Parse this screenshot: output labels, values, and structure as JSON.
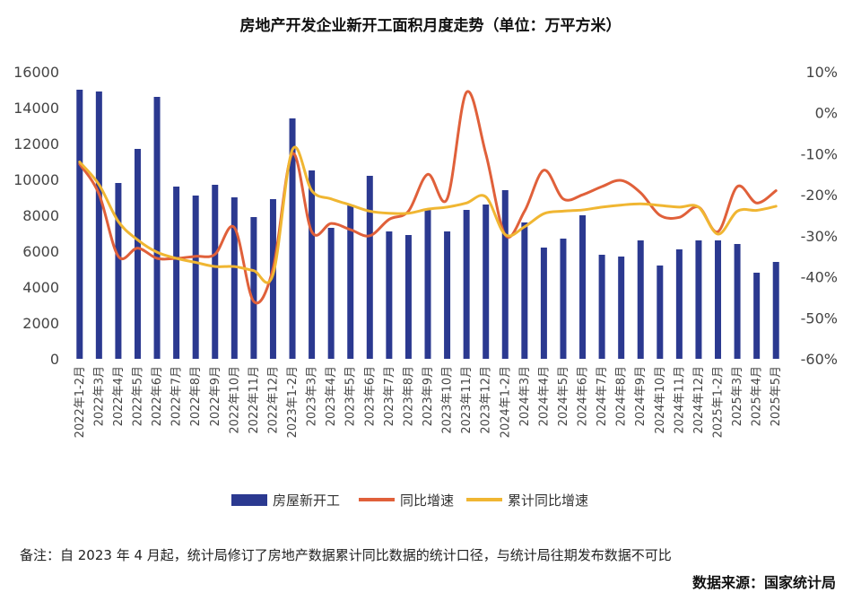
{
  "chart_data": {
    "type": "bar+line",
    "title": "房地产开发企业新开工面积月度走势（单位：万平方米）",
    "categories": [
      "2022年1-2月",
      "2022年3月",
      "2022年4月",
      "2022年5月",
      "2022年6月",
      "2022年7月",
      "2022年8月",
      "2022年9月",
      "2022年10月",
      "2022年11月",
      "2022年12月",
      "2023年1-2月",
      "2023年3月",
      "2023年4月",
      "2023年5月",
      "2023年6月",
      "2023年7月",
      "2023年8月",
      "2023年9月",
      "2023年10月",
      "2023年11月",
      "2023年12月",
      "2024年1-2月",
      "2024年3月",
      "2024年4月",
      "2024年5月",
      "2024年6月",
      "2024年7月",
      "2024年8月",
      "2024年9月",
      "2024年10月",
      "2024年11月",
      "2024年12月",
      "2025年1-2月",
      "2025年3月",
      "2025年4月",
      "2025年5月"
    ],
    "series": [
      {
        "name": "房屋新开工",
        "type": "bar",
        "axis": "left",
        "color": "#2b3990",
        "values": [
          15000,
          14900,
          9800,
          11700,
          14600,
          9600,
          9100,
          9700,
          9000,
          7900,
          8900,
          13400,
          10500,
          7300,
          8600,
          10200,
          7100,
          6900,
          8300,
          7100,
          8300,
          8600,
          9400,
          7600,
          6200,
          6700,
          8000,
          5800,
          5700,
          6600,
          5200,
          6100,
          6600,
          6600,
          6400,
          4800,
          5400
        ]
      },
      {
        "name": "同比增速",
        "type": "line",
        "axis": "right",
        "color": "#e0603a",
        "values": [
          -12.5,
          -19.8,
          -35,
          -33,
          -35.5,
          -35.5,
          -35,
          -34.5,
          -28,
          -46,
          -38,
          -10,
          -29,
          -27,
          -28.5,
          -30,
          -26,
          -24,
          -15,
          -21,
          5,
          -10,
          -29.8,
          -24,
          -14,
          -21,
          -20,
          -18,
          -16.5,
          -19.5,
          -25,
          -25.5,
          -23,
          -29,
          -18,
          -22,
          -19
        ]
      },
      {
        "name": "累计同比增速",
        "type": "line",
        "axis": "right",
        "color": "#f0b632",
        "values": [
          -12,
          -17.5,
          -26.5,
          -31,
          -34,
          -35.5,
          -36.5,
          -37.5,
          -37.5,
          -38.5,
          -39.4,
          -9,
          -19,
          -21,
          -22.5,
          -24,
          -24.5,
          -24.5,
          -23.5,
          -23,
          -22,
          -20.5,
          -29.7,
          -27.8,
          -24.6,
          -24,
          -23.7,
          -23,
          -22.5,
          -22.2,
          -22.6,
          -23,
          -23,
          -29.6,
          -24,
          -23.8,
          -22.8
        ]
      }
    ],
    "yleft": {
      "min": 0,
      "max": 16000,
      "step": 2000
    },
    "yright": {
      "min": -60,
      "max": 10,
      "step": 10,
      "suffix": "%"
    },
    "grid": false,
    "legend_position": "bottom"
  },
  "note": "备注：自 2023 年 4 月起，统计局修订了房地产数据累计同比数据的统计口径，与统计局往期发布数据不可比",
  "source": "数据来源：国家统计局"
}
